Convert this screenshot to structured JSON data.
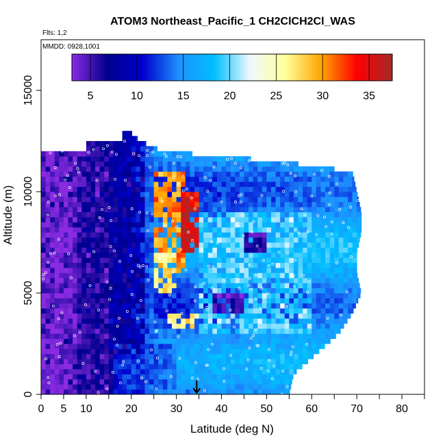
{
  "chart_data": {
    "type": "heatmap",
    "title": "ATOM3 Northeast_Pacific_1 CH2ClCH2Cl_WAS",
    "annotations": [
      "Flts: 1,2",
      "MMDD: 0928,1001"
    ],
    "xlabel": "Latitude (deg N)",
    "ylabel": "Altitude (m)",
    "xlim": [
      0,
      85
    ],
    "ylim": [
      0,
      17500
    ],
    "x_ticks": [
      0,
      5,
      10,
      20,
      30,
      40,
      50,
      60,
      70,
      80
    ],
    "y_ticks": [
      0,
      5000,
      10000,
      15000
    ],
    "colorbar": {
      "placement": "top-inside",
      "range": [
        3,
        37.5
      ],
      "ticks": [
        5,
        10,
        15,
        20,
        25,
        30,
        35
      ],
      "colors": [
        "#8a2be2",
        "#00008b",
        "#0000cd",
        "#1e90ff",
        "#00bfff",
        "#f0f8ff",
        "#ffff99",
        "#ffa500",
        "#ff0000",
        "#a52a2a"
      ]
    },
    "marker": {
      "type": "arrow-down",
      "latitude": 34.5,
      "altitude": 700
    },
    "data_extent": {
      "altitude_rows": [
        0,
        12900
      ],
      "latitude_start": 0,
      "row_max_latitude": [
        [
          0,
          55
        ],
        [
          1000,
          56
        ],
        [
          2000,
          61
        ],
        [
          3000,
          66
        ],
        [
          4000,
          69
        ],
        [
          5000,
          71
        ],
        [
          6000,
          70
        ],
        [
          7000,
          70
        ],
        [
          8000,
          71
        ],
        [
          9000,
          71
        ],
        [
          10000,
          70
        ],
        [
          11000,
          69
        ],
        [
          11500,
          53
        ],
        [
          12000,
          27
        ],
        [
          12500,
          22
        ],
        [
          12900,
          20
        ]
      ]
    },
    "features": [
      {
        "lat": [
          0,
          8
        ],
        "alt": [
          0,
          12000
        ],
        "value": 4
      },
      {
        "lat": [
          8,
          15
        ],
        "alt": [
          0,
          12000
        ],
        "value": 6
      },
      {
        "lat": [
          15,
          23
        ],
        "alt": [
          2000,
          12000
        ],
        "value": 8
      },
      {
        "lat": [
          25,
          32
        ],
        "alt": [
          6000,
          11000
        ],
        "value": 30
      },
      {
        "lat": [
          31,
          35
        ],
        "alt": [
          7000,
          10000
        ],
        "value": 35
      },
      {
        "lat": [
          25,
          30
        ],
        "alt": [
          5000,
          6800
        ],
        "value": 27
      },
      {
        "lat": [
          28,
          35
        ],
        "alt": [
          3200,
          4000
        ],
        "value": 26
      },
      {
        "lat": [
          35,
          60
        ],
        "alt": [
          3000,
          9000
        ],
        "value": 19
      },
      {
        "lat": [
          38,
          45
        ],
        "alt": [
          4000,
          5000
        ],
        "value": 5
      },
      {
        "lat": [
          45,
          50
        ],
        "alt": [
          7000,
          8000
        ],
        "value": 6
      }
    ]
  }
}
